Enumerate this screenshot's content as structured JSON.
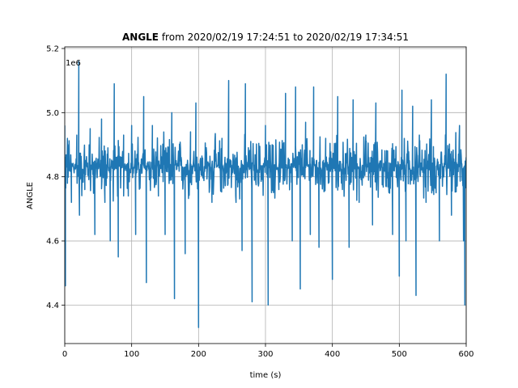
{
  "chart_data": {
    "type": "line",
    "title_bold": "ANGLE",
    "title_rest": " from 2020/02/19 17:24:51 to 2020/02/19 17:34:51",
    "xlabel": "time (s)",
    "ylabel": "ANGLE",
    "offset_label": "1e6",
    "xlim": [
      0,
      600
    ],
    "ylim": [
      4.28,
      5.205
    ],
    "xticks": [
      0,
      100,
      200,
      300,
      400,
      500,
      600
    ],
    "xtick_labels": [
      "0",
      "100",
      "200",
      "300",
      "400",
      "500",
      "600"
    ],
    "yticks": [
      4.4,
      4.6,
      4.8,
      5.0,
      5.2
    ],
    "ytick_labels": [
      "4.4",
      "4.6",
      "4.8",
      "5.0",
      "5.2"
    ],
    "grid": true,
    "line_color": "#1f77b4",
    "series": [
      {
        "baseline": 4.83,
        "noise_low": 4.74,
        "noise_high": 4.92,
        "x": [
          0,
          1,
          4,
          10,
          18,
          21,
          22,
          30,
          38,
          45,
          55,
          60,
          68,
          74,
          80,
          88,
          95,
          100,
          106,
          118,
          122,
          131,
          140,
          150,
          160,
          164,
          170,
          180,
          188,
          196,
          200,
          205,
          220,
          235,
          245,
          256,
          265,
          270,
          280,
          290,
          300,
          304,
          310,
          320,
          330,
          340,
          345,
          352,
          360,
          367,
          372,
          380,
          390,
          400,
          408,
          415,
          425,
          431,
          440,
          450,
          460,
          465,
          480,
          490,
          500,
          504,
          510,
          520,
          525,
          530,
          540,
          548,
          555,
          560,
          570,
          578,
          590,
          596,
          598,
          600
        ],
        "y": [
          4.96,
          4.46,
          4.92,
          4.72,
          4.93,
          5.16,
          4.68,
          4.76,
          4.95,
          4.62,
          4.98,
          4.72,
          4.6,
          5.09,
          4.55,
          4.93,
          4.74,
          4.96,
          4.62,
          5.05,
          4.47,
          4.96,
          4.74,
          4.62,
          5.0,
          4.42,
          4.88,
          4.56,
          4.94,
          5.03,
          4.33,
          4.85,
          4.72,
          4.92,
          5.1,
          4.72,
          4.57,
          5.09,
          4.41,
          4.78,
          4.96,
          4.4,
          4.9,
          4.76,
          5.06,
          4.6,
          5.08,
          4.45,
          4.97,
          4.62,
          5.08,
          4.58,
          4.92,
          4.48,
          5.05,
          4.76,
          4.58,
          5.04,
          4.72,
          4.93,
          4.65,
          5.03,
          4.77,
          4.62,
          4.49,
          5.07,
          4.6,
          5.02,
          4.43,
          4.93,
          4.72,
          5.04,
          4.75,
          4.6,
          5.12,
          4.68,
          4.96,
          4.6,
          4.4,
          4.86
        ]
      }
    ]
  }
}
